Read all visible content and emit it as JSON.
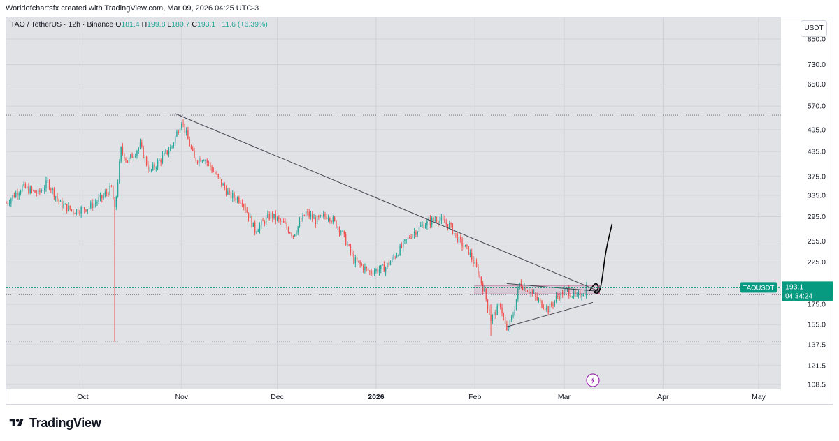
{
  "header": {
    "attribution": "Worldofchartsfx created with TradingView.com, Mar 09, 2026 04:25 UTC-3"
  },
  "legend": {
    "symbol": "TAO / TetherUS · 12h · Binance",
    "o_label": "O",
    "o_value": "181.4",
    "h_label": "H",
    "h_value": "199.8",
    "l_label": "L",
    "l_value": "180.7",
    "c_label": "C",
    "c_value": "193.1",
    "change": "+11.6 (+6.39%)"
  },
  "currency_button": "USDT",
  "ticker_tag": {
    "symbol": "TAOUSDT",
    "price": "193.1",
    "countdown": "04:34:24"
  },
  "footer": {
    "brand": "TradingView"
  },
  "colors": {
    "up": "#26a69a",
    "down": "#ef5350",
    "tag_bg": "#089981",
    "pane_bg": "#e1e2e6",
    "grid": "#cfd1d8",
    "trendline": "#434651",
    "rect": "#9c2a5e",
    "lightning": "#9c27b0",
    "wave": "#000000"
  },
  "chart_data": {
    "type": "candlestick",
    "symbol": "TAO / TetherUS",
    "interval": "12h",
    "exchange": "Binance",
    "scale": "log",
    "y_ticks": [
      850.0,
      730.0,
      650.0,
      570.0,
      495.0,
      435.0,
      375.0,
      335.0,
      295.0,
      255.0,
      225.0,
      175.0,
      155.0,
      137.5,
      121.5,
      108.5
    ],
    "x_ticks": [
      {
        "label": "Oct",
        "date": "2025-10-01"
      },
      {
        "label": "Nov",
        "date": "2025-11-01"
      },
      {
        "label": "Dec",
        "date": "2025-12-01"
      },
      {
        "label": "2026",
        "date": "2026-01-01",
        "bold": true
      },
      {
        "label": "Feb",
        "date": "2026-02-01"
      },
      {
        "label": "Mar",
        "date": "2026-03-01"
      },
      {
        "label": "Apr",
        "date": "2026-04-01"
      },
      {
        "label": "May",
        "date": "2026-05-01"
      }
    ],
    "date_range": [
      "2025-09-07",
      "2026-05-08"
    ],
    "price_path": [
      [
        "2025-09-07",
        320
      ],
      [
        "2025-09-12",
        352
      ],
      [
        "2025-09-17",
        338
      ],
      [
        "2025-09-20",
        362
      ],
      [
        "2025-09-24",
        318
      ],
      [
        "2025-09-28",
        305
      ],
      [
        "2025-10-03",
        312
      ],
      [
        "2025-10-07",
        330
      ],
      [
        "2025-10-10",
        350
      ],
      [
        "2025-10-11",
        305
      ],
      [
        "2025-10-13",
        440
      ],
      [
        "2025-10-15",
        410
      ],
      [
        "2025-10-19",
        450
      ],
      [
        "2025-10-22",
        385
      ],
      [
        "2025-10-26",
        420
      ],
      [
        "2025-10-29",
        450
      ],
      [
        "2025-11-01",
        525
      ],
      [
        "2025-11-05",
        415
      ],
      [
        "2025-11-08",
        420
      ],
      [
        "2025-11-12",
        375
      ],
      [
        "2025-11-16",
        335
      ],
      [
        "2025-11-20",
        325
      ],
      [
        "2025-11-24",
        272
      ],
      [
        "2025-11-29",
        298
      ],
      [
        "2025-12-03",
        282
      ],
      [
        "2025-12-06",
        265
      ],
      [
        "2025-12-10",
        302
      ],
      [
        "2025-12-13",
        288
      ],
      [
        "2025-12-17",
        298
      ],
      [
        "2025-12-21",
        272
      ],
      [
        "2025-12-25",
        228
      ],
      [
        "2025-12-30",
        212
      ],
      [
        "2026-01-04",
        218
      ],
      [
        "2026-01-08",
        240
      ],
      [
        "2026-01-12",
        265
      ],
      [
        "2026-01-16",
        282
      ],
      [
        "2026-01-20",
        292
      ],
      [
        "2026-01-24",
        280
      ],
      [
        "2026-01-27",
        255
      ],
      [
        "2026-01-30",
        240
      ],
      [
        "2026-02-02",
        212
      ],
      [
        "2026-02-04",
        188
      ],
      [
        "2026-02-06",
        160
      ],
      [
        "2026-02-09",
        175
      ],
      [
        "2026-02-11",
        148
      ],
      [
        "2026-02-13",
        165
      ],
      [
        "2026-02-15",
        198
      ],
      [
        "2026-02-18",
        190
      ],
      [
        "2026-02-21",
        178
      ],
      [
        "2026-02-24",
        170
      ],
      [
        "2026-02-27",
        184
      ],
      [
        "2026-03-02",
        190
      ],
      [
        "2026-03-05",
        182
      ],
      [
        "2026-03-08",
        193.1
      ]
    ],
    "wick_events": [
      {
        "date": "2025-10-11",
        "high": 325,
        "low": 140
      },
      {
        "date": "2026-02-06",
        "high": 175,
        "low": 145
      }
    ],
    "last": {
      "open": 181.4,
      "high": 199.8,
      "low": 180.7,
      "close": 193.1,
      "change": 11.6,
      "change_pct": 6.39
    },
    "dotted_levels": [
      540,
      185.2,
      140.5
    ],
    "annotations": {
      "downtrend_line": {
        "from": [
          "2025-10-30",
          545
        ],
        "to": [
          "2026-03-12",
          189
        ]
      },
      "triangle_upper": {
        "from": [
          "2026-02-11",
          198
        ],
        "to": [
          "2026-03-12",
          189
        ]
      },
      "triangle_lower": {
        "from": [
          "2026-02-11",
          153
        ],
        "to": [
          "2026-03-10",
          177
        ]
      },
      "zone": {
        "from": "2026-02-01",
        "to": "2026-03-12",
        "top": 196,
        "bottom": 186
      },
      "projection": [
        [
          "2026-03-09",
          190
        ],
        [
          "2026-03-11",
          200
        ],
        [
          "2026-03-12",
          192
        ],
        [
          "2026-03-10",
          188
        ],
        [
          "2026-03-12",
          186
        ],
        [
          "2026-03-13",
          205
        ],
        [
          "2026-03-14",
          240
        ],
        [
          "2026-03-16",
          282
        ]
      ]
    }
  }
}
